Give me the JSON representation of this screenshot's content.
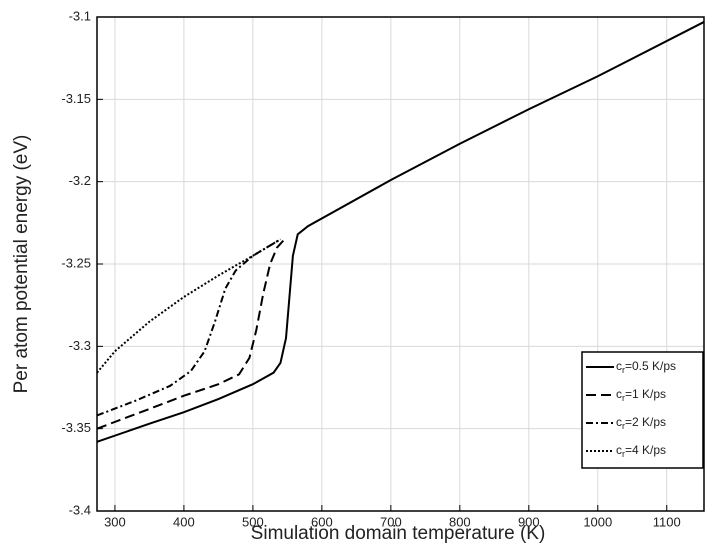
{
  "chart_data": {
    "type": "line",
    "xlabel": "Simulation domain temperature (K)",
    "ylabel": "Per atom potential energy (eV)",
    "xlim": [
      274,
      1154
    ],
    "ylim": [
      -3.4,
      -3.1
    ],
    "xticks": [
      300,
      400,
      500,
      600,
      700,
      800,
      900,
      1000,
      1100
    ],
    "yticks": [
      -3.4,
      -3.35,
      -3.3,
      -3.25,
      -3.2,
      -3.15,
      -3.1
    ],
    "grid": true,
    "legend": "lower right",
    "series": [
      {
        "name": "cr=0.5 K/ps",
        "color": "#000000",
        "dash": "solid",
        "x": [
          274,
          350,
          400,
          450,
          500,
          530,
          540,
          548,
          553,
          558,
          565,
          580,
          700,
          800,
          900,
          1000,
          1154
        ],
        "values": [
          -3.358,
          -3.347,
          -3.34,
          -3.332,
          -3.323,
          -3.316,
          -3.31,
          -3.295,
          -3.27,
          -3.245,
          -3.232,
          -3.227,
          -3.199,
          -3.177,
          -3.156,
          -3.136,
          -3.103
        ]
      },
      {
        "name": "cr=1 K/ps",
        "color": "#000000",
        "dash": "dashed",
        "x": [
          274,
          350,
          400,
          450,
          480,
          495,
          505,
          515,
          525,
          535,
          548
        ],
        "values": [
          -3.35,
          -3.338,
          -3.33,
          -3.323,
          -3.317,
          -3.307,
          -3.29,
          -3.268,
          -3.25,
          -3.24,
          -3.234
        ]
      },
      {
        "name": "cr=2 K/ps",
        "color": "#000000",
        "dash": "dashdot",
        "x": [
          274,
          330,
          380,
          410,
          430,
          445,
          460,
          475,
          500,
          540
        ],
        "values": [
          -3.342,
          -3.333,
          -3.324,
          -3.315,
          -3.303,
          -3.285,
          -3.265,
          -3.254,
          -3.245,
          -3.235
        ]
      },
      {
        "name": "cr=4 K/ps",
        "color": "#000000",
        "dash": "dotted",
        "x": [
          274,
          300,
          350,
          400,
          450,
          500,
          540
        ],
        "values": [
          -3.316,
          -3.303,
          -3.285,
          -3.27,
          -3.257,
          -3.245,
          -3.235
        ]
      }
    ]
  }
}
